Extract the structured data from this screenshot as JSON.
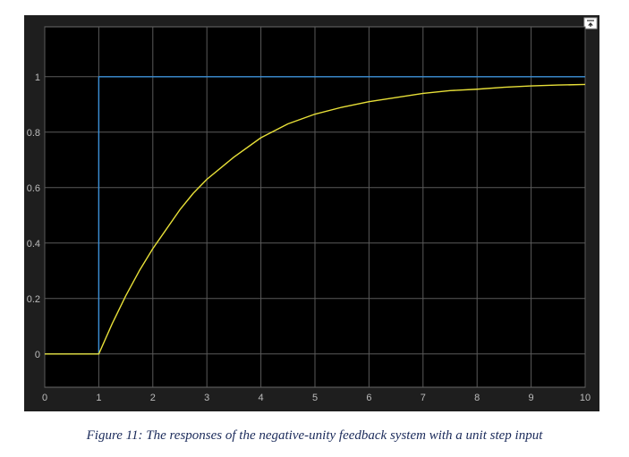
{
  "caption": "Figure 11: The responses of the negative-unity feedback system with a unit step input",
  "restore_icon": "restore-axes-icon",
  "colors": {
    "outer_background": "#1e1e1e",
    "plot_background": "#000000",
    "grid": "#5a5a5a",
    "tick_label": "#bcbcbc",
    "step_input": "#3a8fd6",
    "response": "#e8e038"
  },
  "chart_data": {
    "type": "line",
    "title": "",
    "xlabel": "",
    "ylabel": "",
    "xlim": [
      0,
      10
    ],
    "ylim": [
      -0.12,
      1.18
    ],
    "grid": true,
    "legend": "none",
    "x_ticks": [
      0,
      1,
      2,
      3,
      4,
      5,
      6,
      7,
      8,
      9,
      10
    ],
    "y_ticks": [
      0,
      0.2,
      0.4,
      0.6,
      0.8,
      1
    ],
    "series": [
      {
        "name": "",
        "color": "#3a8fd6",
        "style": "step",
        "x": [
          0,
          1,
          1,
          10
        ],
        "y": [
          0,
          0,
          1,
          1
        ]
      },
      {
        "name": "",
        "color": "#e8e038",
        "style": "line",
        "x": [
          0,
          1,
          1.25,
          1.5,
          1.75,
          2,
          2.25,
          2.5,
          2.75,
          3,
          3.5,
          4,
          4.5,
          5,
          5.5,
          6,
          6.5,
          7,
          7.5,
          8,
          8.5,
          9,
          9.5,
          10
        ],
        "y": [
          0,
          0,
          0.11,
          0.21,
          0.3,
          0.38,
          0.45,
          0.52,
          0.58,
          0.63,
          0.71,
          0.78,
          0.83,
          0.865,
          0.89,
          0.91,
          0.925,
          0.94,
          0.95,
          0.955,
          0.962,
          0.967,
          0.97,
          0.972
        ]
      }
    ]
  }
}
